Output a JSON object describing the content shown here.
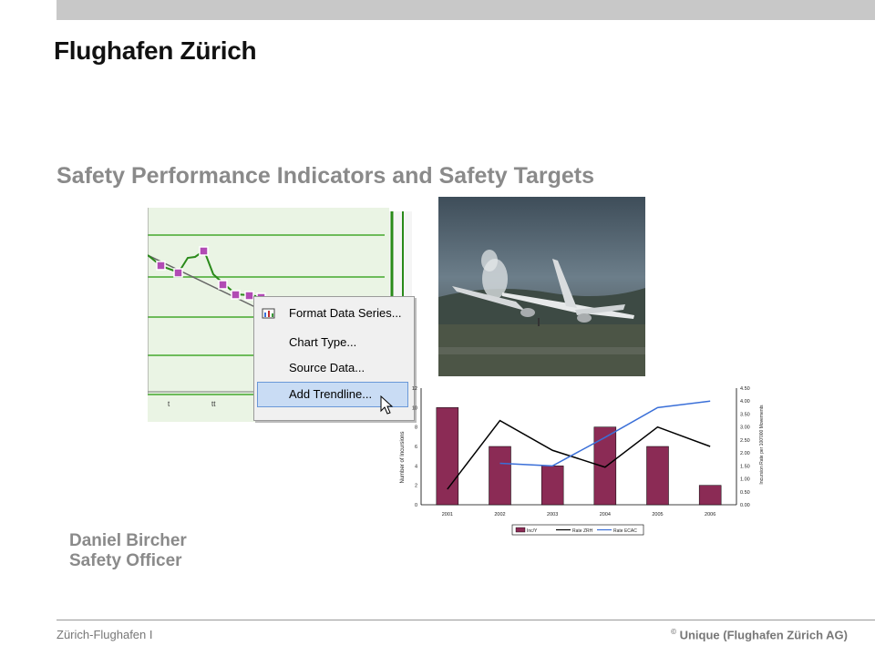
{
  "header": {
    "logo_text": "Flughafen Zürich"
  },
  "slide": {
    "title": "Safety Performance Indicators and Safety Targets",
    "presenter_name": "Daniel Bircher",
    "presenter_role": "Safety Officer"
  },
  "context_menu": {
    "items": [
      "Format Data Series...",
      "Chart Type...",
      "Source Data...",
      "Add Trendline..."
    ],
    "selected_index": 3
  },
  "footer": {
    "left": "Zürich-Flughafen  I",
    "copyright_mark": "©",
    "right": "Unique (Flughafen Zürich AG)"
  },
  "colors": {
    "bar": "#8b2b55",
    "zrh_line": "#000000",
    "ecac_line": "#3a6fd8",
    "title_gray": "#8a8a8a"
  },
  "chart_data": {
    "type": "bar",
    "categories": [
      "2001",
      "2002",
      "2003",
      "2004",
      "2005",
      "2006"
    ],
    "series": [
      {
        "name": "Inc/Y",
        "type": "bar",
        "axis": "left",
        "values": [
          10,
          6,
          4,
          8,
          6,
          2
        ]
      },
      {
        "name": "Rate ZRH",
        "type": "line",
        "axis": "right",
        "values": [
          0.6,
          3.25,
          2.1,
          1.45,
          3.0,
          2.25
        ]
      },
      {
        "name": "Rate ECAC",
        "type": "line",
        "axis": "right",
        "values": [
          null,
          1.6,
          1.5,
          2.6,
          3.75,
          4.0
        ]
      }
    ],
    "ylabel": "Number of Incursions",
    "y2label": "Incursion Rate per 100'000 Movements",
    "ylim": [
      0,
      12
    ],
    "y2lim": [
      0,
      4.5
    ],
    "yticks": [
      "0",
      "2",
      "4",
      "6",
      "8",
      "10",
      "12"
    ],
    "y2ticks": [
      "0.00",
      "0.50",
      "1.00",
      "1.50",
      "2.00",
      "2.50",
      "3.00",
      "3.50",
      "4.00",
      "4.50"
    ],
    "legend_position": "bottom"
  }
}
